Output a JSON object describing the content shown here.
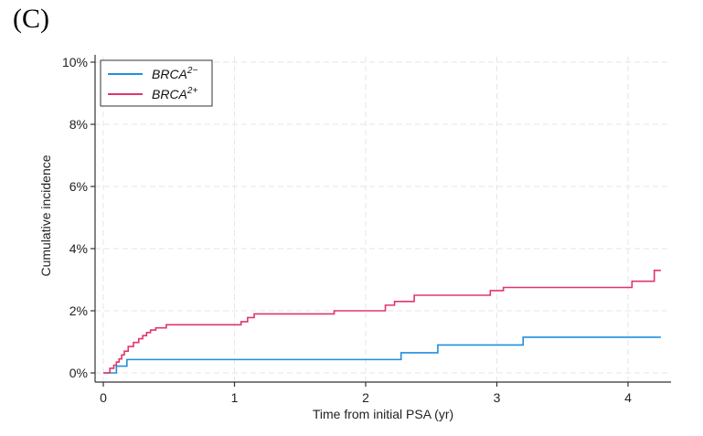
{
  "panel_label": "(C)",
  "chart_data": {
    "type": "line",
    "step": true,
    "xlabel": "Time from initial PSA (yr)",
    "ylabel": "Cumulative incidence",
    "xlim": [
      0,
      4.3
    ],
    "ylim": [
      0,
      0.1
    ],
    "x_ticks": [
      0,
      1,
      2,
      3,
      4
    ],
    "x_tick_labels": [
      "0",
      "1",
      "2",
      "3",
      "4"
    ],
    "y_ticks": [
      0,
      0.02,
      0.04,
      0.06,
      0.08,
      0.1
    ],
    "y_tick_labels": [
      "0%",
      "2%",
      "4%",
      "6%",
      "8%",
      "10%"
    ],
    "grid": true,
    "legend_position": "top-left",
    "series": [
      {
        "name_base": "BRCA",
        "name_sup": "2−",
        "color": "#1f8fe0",
        "x": [
          0.0,
          0.1,
          0.18,
          2.27,
          2.55,
          3.2,
          4.25
        ],
        "y": [
          0.0,
          0.0022,
          0.0043,
          0.0065,
          0.009,
          0.0115,
          0.0115
        ]
      },
      {
        "name_base": "BRCA",
        "name_sup": "2+",
        "color": "#e0366b",
        "x": [
          0.0,
          0.05,
          0.08,
          0.1,
          0.12,
          0.14,
          0.16,
          0.19,
          0.23,
          0.27,
          0.3,
          0.33,
          0.36,
          0.4,
          0.48,
          1.05,
          1.1,
          1.15,
          1.76,
          2.15,
          2.22,
          2.37,
          2.95,
          3.05,
          4.03,
          4.2,
          4.25
        ],
        "y": [
          0.0,
          0.0015,
          0.0025,
          0.0035,
          0.0045,
          0.0058,
          0.007,
          0.0085,
          0.0098,
          0.011,
          0.012,
          0.013,
          0.0138,
          0.0145,
          0.0155,
          0.0165,
          0.0178,
          0.019,
          0.02,
          0.0218,
          0.023,
          0.025,
          0.0265,
          0.0275,
          0.0295,
          0.033,
          0.033
        ]
      }
    ]
  }
}
